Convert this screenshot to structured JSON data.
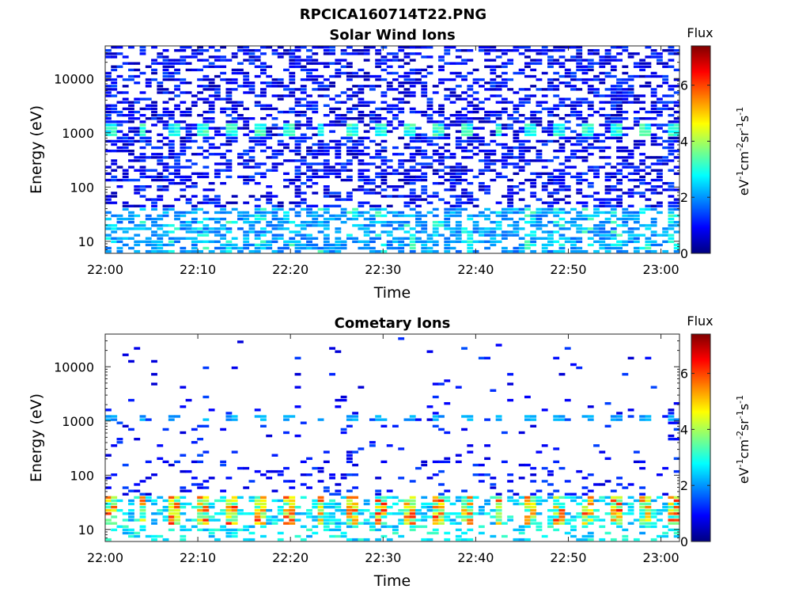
{
  "figure": {
    "title": "RPCICA160714T22.PNG"
  },
  "colormap": {
    "name": "jet",
    "stops": [
      "#000080",
      "#0000ff",
      "#0080ff",
      "#00ffff",
      "#80ff80",
      "#ffff00",
      "#ff8000",
      "#ff0000",
      "#800000"
    ]
  },
  "chart_data": [
    {
      "type": "heatmap",
      "title": "Solar Wind Ions",
      "xlabel": "Time",
      "ylabel": "Energy (eV)",
      "x_range": [
        "22:00",
        "23:02"
      ],
      "x_ticks": [
        "22:00",
        "22:10",
        "22:20",
        "22:30",
        "22:40",
        "22:50",
        "23:00"
      ],
      "y_scale": "log",
      "ylim": [
        6,
        40000
      ],
      "y_ticks": [
        10,
        100,
        1000,
        10000
      ],
      "y_tick_labels": [
        "10",
        "100",
        "1000",
        "10000"
      ],
      "colorbar": {
        "title": "Flux",
        "label": "eV-1cm-2sr-1s-1",
        "label_parts": [
          {
            "text": "eV",
            "sup": false
          },
          {
            "text": "-1",
            "sup": true
          },
          {
            "text": "cm",
            "sup": false
          },
          {
            "text": "-2",
            "sup": true
          },
          {
            "text": "sr",
            "sup": false
          },
          {
            "text": "-1",
            "sup": true
          },
          {
            "text": "s",
            "sup": false
          },
          {
            "text": "-1",
            "sup": true
          }
        ],
        "range": [
          0,
          7.4
        ],
        "ticks": [
          "0",
          "2",
          "4",
          "6"
        ]
      },
      "features": [
        {
          "description": "scattered low flux across full energy range",
          "energy_range_eV": [
            80,
            40000
          ],
          "flux": 0.7
        },
        {
          "description": "periodic band near 1 keV",
          "energy_eV": 1100,
          "period_min": 3.2,
          "flux_peak": 3.4
        },
        {
          "description": "low-energy band",
          "energy_range_eV": [
            7,
            40
          ],
          "flux_range": [
            1.5,
            3.5
          ]
        }
      ]
    },
    {
      "type": "heatmap",
      "title": "Cometary Ions",
      "xlabel": "Time",
      "ylabel": "Energy (eV)",
      "x_range": [
        "22:00",
        "23:02"
      ],
      "x_ticks": [
        "22:00",
        "22:10",
        "22:20",
        "22:30",
        "22:40",
        "22:50",
        "23:00"
      ],
      "y_scale": "log",
      "ylim": [
        6,
        40000
      ],
      "y_ticks": [
        10,
        100,
        1000,
        10000
      ],
      "y_tick_labels": [
        "10",
        "100",
        "1000",
        "10000"
      ],
      "colorbar": {
        "title": "Flux",
        "label": "eV-1cm-2sr-1s-1",
        "label_parts": [
          {
            "text": "eV",
            "sup": false
          },
          {
            "text": "-1",
            "sup": true
          },
          {
            "text": "cm",
            "sup": false
          },
          {
            "text": "-2",
            "sup": true
          },
          {
            "text": "sr",
            "sup": false
          },
          {
            "text": "-1",
            "sup": true
          },
          {
            "text": "s",
            "sup": false
          },
          {
            "text": "-1",
            "sup": true
          }
        ],
        "range": [
          0,
          7.4
        ],
        "ticks": [
          "0",
          "2",
          "4",
          "6"
        ]
      },
      "features": [
        {
          "description": "sparse low flux points",
          "energy_range_eV": [
            50,
            30000
          ],
          "flux": 0.8
        },
        {
          "description": "periodic band near 1 keV",
          "energy_eV": 1150,
          "period_min": 3.2,
          "flux_peak": 2.2
        },
        {
          "description": "intense low-energy band",
          "energy_range_eV": [
            12,
            40
          ],
          "period_min": 3.2,
          "flux_range": [
            2.5,
            6.5
          ]
        }
      ]
    }
  ]
}
